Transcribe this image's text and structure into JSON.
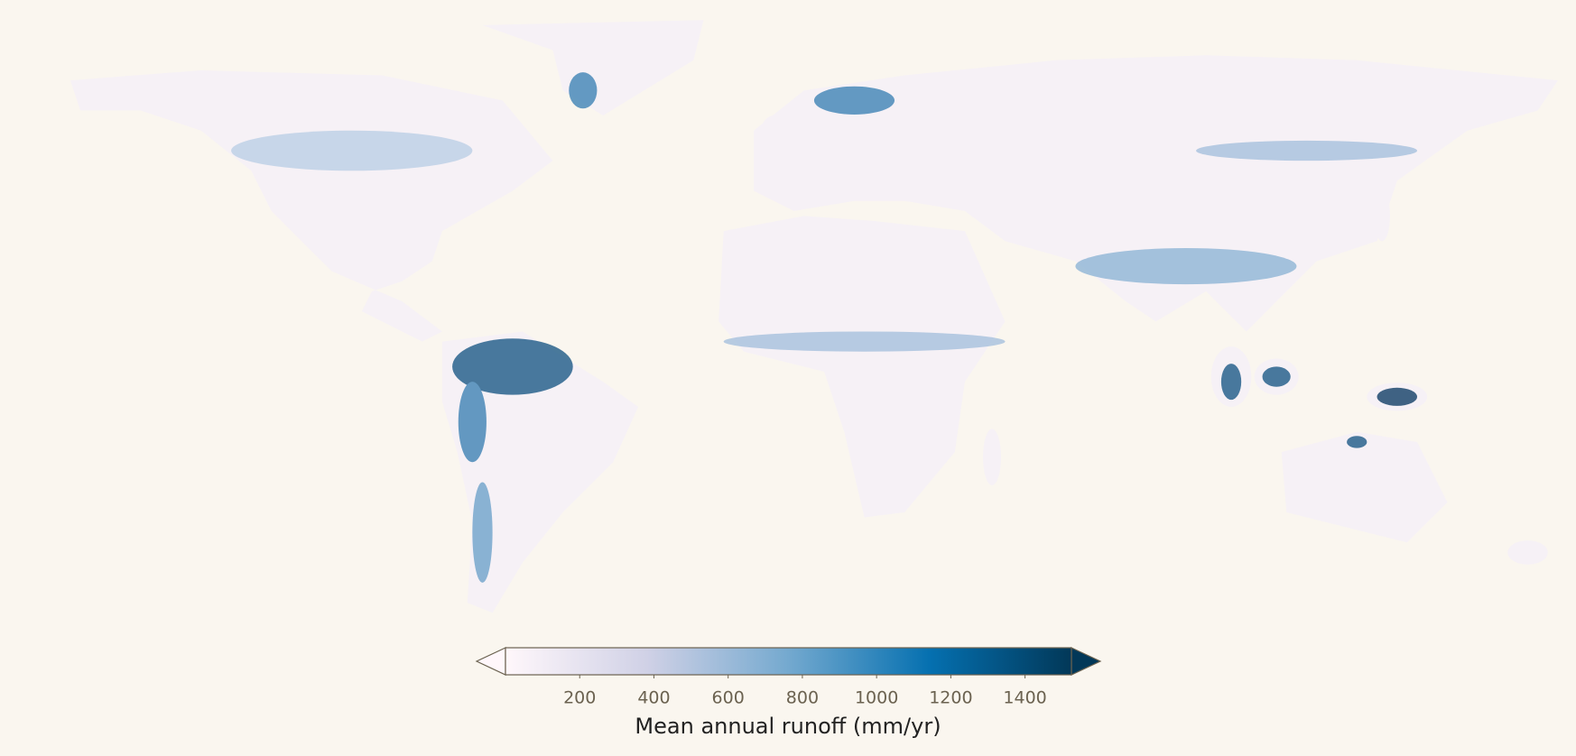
{
  "chart_data": {
    "type": "colorbar",
    "label": "Mean annual runoff (mm/yr)",
    "lim": [
      0,
      1525
    ],
    "ticks": [
      200,
      400,
      600,
      800,
      1000,
      1200,
      1400
    ],
    "colors": [
      "#fff7fb",
      "#d0d1e6",
      "#74a9cf",
      "#0570b0",
      "#023858"
    ],
    "extend": "both"
  }
}
